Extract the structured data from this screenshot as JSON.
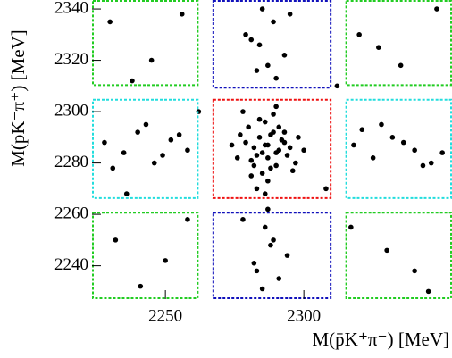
{
  "chart_data": {
    "type": "scatter",
    "x_label": "M(p̄K⁺π⁻) [MeV]",
    "y_label": "M(pK⁻π⁺) [MeV]",
    "xlim": [
      2223.5,
      2353.5
    ],
    "ylim": [
      2227,
      2343.5
    ],
    "xticks": [
      2250,
      2300
    ],
    "yticks": [
      2240,
      2260,
      2280,
      2300,
      2320,
      2340
    ],
    "color": "#000000",
    "regions": [
      {
        "color": "#ee1111",
        "x": [
          2267,
          2310
        ],
        "y": [
          2266,
          2305
        ]
      },
      {
        "color": "#1111bb",
        "x": [
          2267,
          2310
        ],
        "y": [
          2309,
          2343.5
        ]
      },
      {
        "color": "#1111bb",
        "x": [
          2267,
          2310
        ],
        "y": [
          2227,
          2261
        ]
      },
      {
        "color": "#22dddd",
        "x": [
          2223.5,
          2262
        ],
        "y": [
          2266,
          2305
        ]
      },
      {
        "color": "#22dddd",
        "x": [
          2315,
          2353.5
        ],
        "y": [
          2266,
          2305
        ]
      },
      {
        "color": "#22cc22",
        "x": [
          2223.5,
          2262
        ],
        "y": [
          2310,
          2343.5
        ]
      },
      {
        "color": "#22cc22",
        "x": [
          2223.5,
          2262
        ],
        "y": [
          2227,
          2261
        ]
      },
      {
        "color": "#22cc22",
        "x": [
          2315,
          2353.5
        ],
        "y": [
          2310,
          2343.5
        ]
      },
      {
        "color": "#22cc22",
        "x": [
          2315,
          2353.5
        ],
        "y": [
          2227,
          2261
        ]
      }
    ],
    "x": [
      2287,
      2284,
      2290,
      2281,
      2293,
      2286,
      2279,
      2295,
      2288,
      2283,
      2291,
      2277,
      2297,
      2285,
      2289,
      2282,
      2292,
      2280,
      2294,
      2287,
      2276,
      2298,
      2286,
      2290,
      2284,
      2288,
      2283,
      2291,
      2278,
      2296,
      2285,
      2289,
      2281,
      2293,
      2287,
      2282,
      2290,
      2286,
      2274,
      2300,
      2285,
      2289,
      2281,
      2293,
      2287,
      2279,
      2290,
      2284,
      2295,
      2283,
      2286,
      2288,
      2282,
      2291,
      2278,
      2294,
      2285,
      2289,
      2283,
      2287,
      2228,
      2235,
      2240,
      2246,
      2252,
      2258,
      2231,
      2243,
      2255,
      2249,
      2318,
      2325,
      2332,
      2340,
      2346,
      2321,
      2336,
      2350,
      2328,
      2343,
      2230,
      2245,
      2256,
      2238,
      2320,
      2335,
      2348,
      2327,
      2232,
      2250,
      2241,
      2258,
      2317,
      2340,
      2330,
      2345,
      2262,
      2308,
      2236,
      2312
    ],
    "y": [
      2287,
      2290,
      2284,
      2281,
      2292,
      2296,
      2288,
      2286,
      2278,
      2283,
      2294,
      2291,
      2280,
      2276,
      2299,
      2286,
      2289,
      2294,
      2283,
      2273,
      2282,
      2290,
      2287,
      2279,
      2297,
      2291,
      2270,
      2285,
      2300,
      2277,
      2284,
      2292,
      2275,
      2288,
      2282,
      2279,
      2302,
      2268,
      2287,
      2285,
      2340,
      2335,
      2328,
      2322,
      2318,
      2330,
      2313,
      2326,
      2338,
      2316,
      2255,
      2248,
      2241,
      2235,
      2258,
      2244,
      2231,
      2250,
      2238,
      2262,
      2288,
      2284,
      2292,
      2280,
      2289,
      2285,
      2278,
      2295,
      2291,
      2283,
      2287,
      2282,
      2290,
      2285,
      2280,
      2293,
      2288,
      2284,
      2295,
      2279,
      2335,
      2320,
      2338,
      2312,
      2330,
      2318,
      2340,
      2325,
      2250,
      2242,
      2232,
      2258,
      2255,
      2238,
      2246,
      2230,
      2300,
      2270,
      2268,
      2310
    ]
  }
}
